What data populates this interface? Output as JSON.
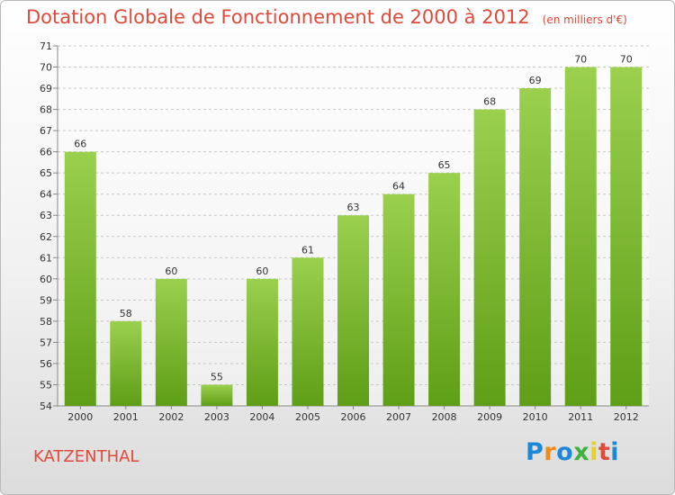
{
  "header": {
    "title": "Dotation Globale de Fonctionnement de 2000 à 2012",
    "subtitle": "(en milliers d'€)"
  },
  "commune": "KATZENTHAL",
  "brand": {
    "letters": [
      "P",
      "r",
      "o",
      "x",
      "i",
      "t",
      "i"
    ],
    "colors": [
      "#1e88d8",
      "#f08a1c",
      "#1e88d8",
      "#3db33d",
      "#e8d21c",
      "#e04a3a",
      "#1e88d8"
    ]
  },
  "colors": {
    "title": "#e04a3a",
    "bar_light": "#9ad04e",
    "bar_dark": "#5f9e17"
  },
  "chart_data": {
    "type": "bar",
    "categories": [
      "2000",
      "2001",
      "2002",
      "2003",
      "2004",
      "2005",
      "2006",
      "2007",
      "2008",
      "2009",
      "2010",
      "2011",
      "2012"
    ],
    "values": [
      66,
      58,
      60,
      55,
      60,
      61,
      63,
      64,
      65,
      68,
      69,
      70,
      70
    ],
    "data_labels": [
      "66",
      "58",
      "60",
      "55",
      "60",
      "61",
      "63",
      "64",
      "65",
      "68",
      "69",
      "70",
      "70"
    ],
    "y_ticks": [
      "54",
      "55",
      "56",
      "57",
      "58",
      "59",
      "60",
      "61",
      "62",
      "63",
      "64",
      "65",
      "66",
      "67",
      "68",
      "69",
      "70",
      "71"
    ],
    "ylim": [
      54,
      71
    ],
    "grid": true,
    "legend": "none"
  }
}
